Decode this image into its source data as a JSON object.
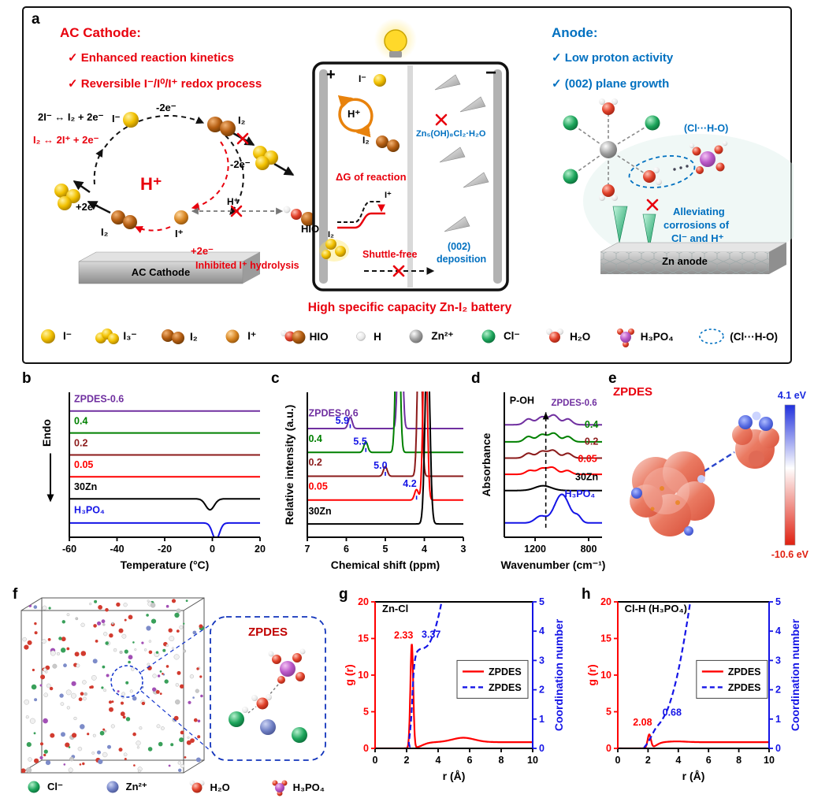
{
  "panels": {
    "a": "a",
    "b": "b",
    "c": "c",
    "d": "d",
    "e": "e",
    "f": "f",
    "g": "g",
    "h": "h"
  },
  "a": {
    "cathode_title": "AC Cathode:",
    "cathode_pt1": "✓ Enhanced reaction kinetics",
    "cathode_pt2": "✓ Reversible I⁻/I⁰/I⁺ redox process",
    "eq_black": "2I⁻ ↔ I₂ + 2e⁻",
    "eq_red": "I₂ ↔ 2I⁺ + 2e⁻",
    "h_plus": "H⁺",
    "minus_2e_top": "-2e⁻",
    "minus_2e_right": "-2e⁻",
    "plus_2e_left": "+2e⁻",
    "plus_2e_bottom": "+2e⁻",
    "i_minus": "I⁻",
    "i2_top": "I₂",
    "i2_bottom": "I₂",
    "i_plus": "I⁺",
    "h_plus_small": "H⁺",
    "hio": "HIO",
    "inhibited": "Inhibited I⁺ hydrolysis",
    "ac_cathode": "AC Cathode",
    "battery_plus": "+",
    "battery_minus": "−",
    "i_minus_batt": "I⁻",
    "h_plus_batt": "H⁺",
    "i2_batt": "I₂",
    "znohcl": "Zn₅(OH)₈Cl₂·H₂O",
    "dg_label": "ΔG of reaction",
    "dg_i2": "I₂",
    "dg_iplus": "I⁺",
    "shuttle": "Shuttle-free",
    "dep1": "(002)",
    "dep2": "deposition",
    "headline": "High specific capacity Zn-I₂ battery",
    "anode_title": "Anode:",
    "anode_pt1": "✓ Low  proton activity",
    "anode_pt2": "✓ (002) plane growth",
    "clho": "(Cl···H-O)",
    "allev1": "Alleviating",
    "allev2": "corrosions of",
    "allev3": "Cl⁻ and H⁺",
    "zn_anode": "Zn anode",
    "legend": [
      {
        "label": "I⁻"
      },
      {
        "label": "I₃⁻"
      },
      {
        "label": "I₂"
      },
      {
        "label": "I⁺"
      },
      {
        "label": "HIO"
      },
      {
        "label": "H"
      },
      {
        "label": "Zn²⁺"
      },
      {
        "label": "Cl⁻"
      },
      {
        "label": "H₂O"
      },
      {
        "label": "H₃PO₄"
      },
      {
        "label": "(Cl···H-O)"
      }
    ]
  },
  "e": {
    "title": "ZPDES",
    "vmax": "4.1 eV",
    "vmin": "-10.6 eV"
  },
  "f": {
    "zoom": "ZPDES",
    "legend": [
      {
        "label": "Cl⁻"
      },
      {
        "label": "Zn²⁺"
      },
      {
        "label": "H₂O"
      },
      {
        "label": "H₃PO₄"
      }
    ]
  },
  "chart_data": [
    {
      "id": "chart-b",
      "type": "line",
      "xlabel": "Temperature (°C)",
      "ylabel": "Endo",
      "yarrow": true,
      "xlim": [
        -60,
        20
      ],
      "ylim": [
        0,
        6.6
      ],
      "xticks": [
        -60,
        -40,
        -20,
        0,
        20
      ],
      "axes": "lb",
      "m": [
        20,
        10,
        58,
        62
      ],
      "ylpad": 24,
      "ylyf": 0.28,
      "series": [
        {
          "name": "ZPDES-0.6",
          "color": "#7030A0",
          "base": 5.75
        },
        {
          "name": "0.4",
          "color": "#008000",
          "base": 4.75
        },
        {
          "name": "0.2",
          "color": "#8B1A1A",
          "base": 3.75
        },
        {
          "name": "0.05",
          "color": "#FF0000",
          "base": 2.75
        },
        {
          "name": "30Zn",
          "color": "#000000",
          "base": 1.75,
          "dips": [
            [
              -1,
              0.5,
              1.8
            ]
          ]
        },
        {
          "name": "H3PO4",
          "color": "#1414E6",
          "base": 0.65,
          "dips": [
            [
              1.5,
              0.75,
              1.5
            ]
          ]
        }
      ],
      "slabels": [
        {
          "text": "ZPDES-0.6",
          "x": -58,
          "y": 6.15,
          "color": "#7030A0"
        },
        {
          "text": "0.4",
          "x": -58,
          "y": 5.15,
          "color": "#008000"
        },
        {
          "text": "0.2",
          "x": -58,
          "y": 4.15,
          "color": "#8B1A1A"
        },
        {
          "text": "0.05",
          "x": -58,
          "y": 3.15,
          "color": "#FF0000"
        },
        {
          "text": "30Zn",
          "x": -58,
          "y": 2.15,
          "color": "#000000"
        },
        {
          "text": "H₃PO₄",
          "x": -58,
          "y": 1.1,
          "color": "#1414E6"
        }
      ]
    },
    {
      "id": "chart-c",
      "type": "line",
      "xlabel": "Chemical shift (ppm)",
      "ylabel": "Relative intensity (a.u.)",
      "xlim": [
        7,
        3
      ],
      "ylim": [
        0,
        7.6
      ],
      "xticks": [
        7,
        6,
        5,
        4,
        3
      ],
      "axes": "lb",
      "m": [
        20,
        8,
        58,
        46
      ],
      "ylpad": 18,
      "series": [
        {
          "name": "ZPDES-0.6",
          "color": "#7030A0",
          "base": 5.7,
          "peaks": [
            [
              5.9,
              0.6,
              0.05
            ],
            [
              4.62,
              10,
              0.05
            ]
          ]
        },
        {
          "name": "0.4",
          "color": "#008000",
          "base": 4.45,
          "peaks": [
            [
              5.5,
              0.55,
              0.05
            ],
            [
              4.68,
              10,
              0.05
            ]
          ]
        },
        {
          "name": "0.2",
          "color": "#8B1A1A",
          "base": 3.2,
          "peaks": [
            [
              5.0,
              0.5,
              0.05
            ],
            [
              4.12,
              10,
              0.05
            ]
          ]
        },
        {
          "name": "0.05",
          "color": "#FF0000",
          "base": 1.95,
          "peaks": [
            [
              4.2,
              0.55,
              0.05
            ],
            [
              3.98,
              10,
              0.05
            ]
          ]
        },
        {
          "name": "30Zn",
          "color": "#000000",
          "base": 0.7,
          "peaks": [
            [
              3.92,
              10,
              0.06
            ]
          ]
        }
      ],
      "slabels": [
        {
          "text": "ZPDES-0.6",
          "x": 6.97,
          "y": 6.35,
          "color": "#7030A0"
        },
        {
          "text": "5.9",
          "x": 6.28,
          "y": 5.95,
          "color": "#1414E6"
        },
        {
          "text": "0.4",
          "x": 6.97,
          "y": 5.0,
          "color": "#008000"
        },
        {
          "text": "5.5",
          "x": 5.82,
          "y": 4.85,
          "color": "#1414E6"
        },
        {
          "text": "0.2",
          "x": 6.97,
          "y": 3.75,
          "color": "#8B1A1A"
        },
        {
          "text": "5.0",
          "x": 5.3,
          "y": 3.6,
          "color": "#1414E6"
        },
        {
          "text": "0.05",
          "x": 6.97,
          "y": 2.5,
          "color": "#FF0000"
        },
        {
          "text": "4.2",
          "x": 4.55,
          "y": 2.65,
          "color": "#1414E6"
        },
        {
          "text": "30Zn",
          "x": 6.97,
          "y": 1.2,
          "color": "#000000"
        }
      ],
      "vlines": [
        {
          "x": 5.9,
          "y0": 5.72,
          "y1": 6.1,
          "color": "#1414E6",
          "dash": true
        },
        {
          "x": 5.5,
          "y0": 4.47,
          "y1": 4.85,
          "color": "#1414E6",
          "dash": true
        },
        {
          "x": 5.0,
          "y0": 3.22,
          "y1": 3.6,
          "color": "#1414E6",
          "dash": true
        },
        {
          "x": 4.2,
          "y0": 1.97,
          "y1": 2.35,
          "color": "#1414E6",
          "dash": true
        }
      ]
    },
    {
      "id": "chart-d",
      "type": "line",
      "xlabel": "Wavenumber (cm⁻¹)",
      "ylabel": "Absorbance",
      "xlim": [
        1430,
        700
      ],
      "ylim": [
        0,
        7.6
      ],
      "xticks": [
        1200,
        800
      ],
      "axes": "lb",
      "m": [
        20,
        8,
        58,
        44
      ],
      "ylpad": 18,
      "series": [
        {
          "name": "ZPDES-0.6",
          "color": "#7030A0",
          "base": 5.9,
          "peaks": [
            [
              1250,
              0.3,
              30
            ],
            [
              1150,
              0.4,
              35
            ],
            [
              1060,
              0.5,
              35
            ],
            [
              955,
              0.3,
              30
            ]
          ]
        },
        {
          "name": "0.4",
          "color": "#008000",
          "base": 5.0,
          "peaks": [
            [
              1250,
              0.28,
              30
            ],
            [
              1150,
              0.38,
              35
            ],
            [
              1060,
              0.45,
              35
            ],
            [
              955,
              0.28,
              30
            ]
          ]
        },
        {
          "name": "0.2",
          "color": "#8B1A1A",
          "base": 4.15,
          "peaks": [
            [
              1250,
              0.25,
              30
            ],
            [
              1150,
              0.35,
              35
            ],
            [
              1065,
              0.4,
              35
            ],
            [
              955,
              0.25,
              30
            ]
          ]
        },
        {
          "name": "0.05",
          "color": "#FF0000",
          "base": 3.3,
          "peaks": [
            [
              1240,
              0.2,
              30
            ],
            [
              1150,
              0.3,
              35
            ],
            [
              1070,
              0.35,
              35
            ],
            [
              960,
              0.2,
              30
            ]
          ]
        },
        {
          "name": "30Zn",
          "color": "#000000",
          "base": 2.45,
          "peaks": [
            [
              1140,
              0.25,
              60
            ]
          ]
        },
        {
          "name": "H3PO4",
          "color": "#1414E6",
          "base": 0.75,
          "peaks": [
            [
              1160,
              0.35,
              40
            ],
            [
              1000,
              1.5,
              55
            ],
            [
              880,
              0.3,
              25
            ]
          ]
        }
      ],
      "slabels": [
        {
          "text": "P-OH",
          "x": 1390,
          "y": 7.0,
          "color": "#000000"
        },
        {
          "text": "ZPDES-0.6",
          "x": 1080,
          "y": 6.9,
          "color": "#7030A0",
          "size": 11.5
        },
        {
          "text": "0.4",
          "x": 830,
          "y": 5.75,
          "color": "#008000"
        },
        {
          "text": "0.2",
          "x": 830,
          "y": 4.85,
          "color": "#8B1A1A"
        },
        {
          "text": "0.05",
          "x": 880,
          "y": 3.95,
          "color": "#FF0000"
        },
        {
          "text": "30Zn",
          "x": 900,
          "y": 3.0,
          "color": "#000000"
        },
        {
          "text": "H₃PO₄",
          "x": 980,
          "y": 2.1,
          "color": "#1414E6"
        }
      ],
      "vlines": [
        {
          "x": 1120,
          "y0": 0.5,
          "y1": 6.55,
          "color": "#000000",
          "dash": true,
          "head": true
        }
      ]
    },
    {
      "id": "chart-g",
      "type": "line",
      "xlabel": "r (Å)",
      "ylabel": "g (r)",
      "y2label": "Coordination number",
      "xlim": [
        0,
        10
      ],
      "ylim": [
        0,
        20
      ],
      "y2lim": [
        0,
        5
      ],
      "xticks": [
        0,
        2,
        4,
        6,
        8,
        10
      ],
      "yticks": [
        0,
        5,
        10,
        15,
        20
      ],
      "y2ticks": [
        0,
        1,
        2,
        3,
        4,
        5
      ],
      "axes": "box",
      "m": [
        14,
        56,
        58,
        46
      ],
      "ylpad": 28,
      "y2pad": 38,
      "axc": {
        "left": "#FF0000",
        "right": "#1414E6"
      },
      "series": [
        {
          "name": "ZPDES",
          "color": "#FF0000",
          "base": 0,
          "width": 2.2,
          "peaks": [
            [
              2.33,
              14.2,
              0.09
            ],
            [
              5.6,
              0.6,
              0.7
            ]
          ],
          "steps": [
            [
              3.0,
              0.85,
              0.45
            ]
          ]
        },
        {
          "name": "ZPDES",
          "color": "#1414E6",
          "axis": "y2",
          "dash": true,
          "width": 2.2,
          "pts": [
            [
              0,
              0
            ],
            [
              2.0,
              0
            ],
            [
              2.15,
              0.25
            ],
            [
              2.3,
              1.1
            ],
            [
              2.45,
              2.6
            ],
            [
              2.6,
              3.2
            ],
            [
              2.8,
              3.37
            ],
            [
              3.1,
              3.42
            ],
            [
              3.4,
              3.55
            ],
            [
              3.7,
              3.9
            ],
            [
              3.95,
              4.35
            ],
            [
              4.2,
              4.95
            ],
            [
              4.45,
              5.8
            ]
          ]
        }
      ],
      "slabels": [
        {
          "text": "Zn-Cl",
          "x": 0.45,
          "y": 18.6,
          "color": "#000000",
          "size": 13
        },
        {
          "text": "2.33",
          "x": 1.2,
          "y": 15.0,
          "color": "#FF0000"
        },
        {
          "text": "3.37",
          "x": 2.95,
          "y2": 3.78,
          "color": "#1414E6"
        }
      ],
      "legend": {
        "fx": 0.52,
        "fy": 0.4,
        "entries": [
          {
            "label": "ZPDES",
            "color": "#FF0000",
            "dash": false
          },
          {
            "label": "ZPDES",
            "color": "#1414E6",
            "dash": true
          }
        ]
      }
    },
    {
      "id": "chart-h",
      "type": "line",
      "xlabel": "r (Å)",
      "ylabel": "g (r)",
      "y2label": "Coordination number",
      "xlim": [
        0,
        10
      ],
      "ylim": [
        0,
        20
      ],
      "y2lim": [
        0,
        5
      ],
      "xticks": [
        0,
        2,
        4,
        6,
        8,
        10
      ],
      "yticks": [
        0,
        5,
        10,
        15,
        20
      ],
      "y2ticks": [
        0,
        1,
        2,
        3,
        4,
        5
      ],
      "axes": "box",
      "m": [
        14,
        56,
        58,
        46
      ],
      "ylpad": 28,
      "y2pad": 38,
      "axc": {
        "left": "#FF0000",
        "right": "#1414E6"
      },
      "series": [
        {
          "name": "ZPDES",
          "color": "#FF0000",
          "base": 0,
          "width": 2.2,
          "peaks": [
            [
              2.08,
              1.85,
              0.11
            ],
            [
              3.9,
              0.1,
              0.6
            ]
          ],
          "steps": [
            [
              2.55,
              0.85,
              0.35
            ]
          ]
        },
        {
          "name": "ZPDES",
          "color": "#1414E6",
          "axis": "y2",
          "dash": true,
          "width": 2.2,
          "pts": [
            [
              0,
              0
            ],
            [
              1.5,
              0
            ],
            [
              1.85,
              0.1
            ],
            [
              2.15,
              0.35
            ],
            [
              2.5,
              0.68
            ],
            [
              2.9,
              0.95
            ],
            [
              3.3,
              1.35
            ],
            [
              3.7,
              2.0
            ],
            [
              4.1,
              2.9
            ],
            [
              4.5,
              4.05
            ],
            [
              4.85,
              5.2
            ],
            [
              5.0,
              5.8
            ]
          ]
        }
      ],
      "slabels": [
        {
          "text": "Cl-H (H₃PO₄)",
          "x": 0.45,
          "y": 18.6,
          "color": "#000000",
          "size": 13
        },
        {
          "text": "2.08",
          "x": 1.0,
          "y": 3.1,
          "color": "#FF0000"
        },
        {
          "text": "0.68",
          "x": 2.95,
          "y2": 1.12,
          "color": "#1414E6"
        }
      ],
      "legend": {
        "fx": 0.52,
        "fy": 0.4,
        "entries": [
          {
            "label": "ZPDES",
            "color": "#FF0000",
            "dash": false
          },
          {
            "label": "ZPDES",
            "color": "#1414E6",
            "dash": true
          }
        ]
      }
    }
  ]
}
